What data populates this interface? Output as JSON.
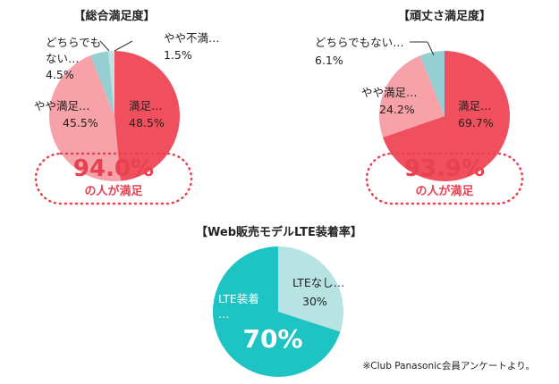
{
  "chart_data": [
    {
      "type": "pie",
      "title": "【総合満足度】",
      "slices": [
        {
          "label": "満足…",
          "value": 48.5,
          "value_text": "48.5%",
          "color": "#f0505e"
        },
        {
          "label": "やや満足…",
          "value": 45.5,
          "value_text": "45.5%",
          "color": "#f7a1a8"
        },
        {
          "label": "どちらでも ない…",
          "value": 4.5,
          "value_text": "4.5%",
          "color": "#96cfd2"
        },
        {
          "label": "やや不満…",
          "value": 1.5,
          "value_text": "1.5%",
          "color": "#bfe3e4"
        }
      ],
      "callout": {
        "value": "94.0%",
        "text": "の人が満足"
      }
    },
    {
      "type": "pie",
      "title": "【頑丈さ満足度】",
      "slices": [
        {
          "label": "満足…",
          "value": 69.7,
          "value_text": "69.7%",
          "color": "#f0505e"
        },
        {
          "label": "やや満足…",
          "value": 24.2,
          "value_text": "24.2%",
          "color": "#f7a1a8"
        },
        {
          "label": "どちらでもない…",
          "value": 6.1,
          "value_text": "6.1%",
          "color": "#96cfd2"
        }
      ],
      "callout": {
        "value": "93.9%",
        "text": "の人が満足"
      }
    },
    {
      "type": "pie",
      "title": "【Web販売モデルLTE装着率】",
      "slices": [
        {
          "label": "LTEなし…",
          "value": 30,
          "value_text": "30%",
          "color": "#b7e3e3"
        },
        {
          "label": "LTE装着 …",
          "value": 70,
          "value_text": "70%",
          "color": "#1ec3c3"
        }
      ]
    }
  ],
  "footnote": "※Club Panasonic会員アンケートより。"
}
